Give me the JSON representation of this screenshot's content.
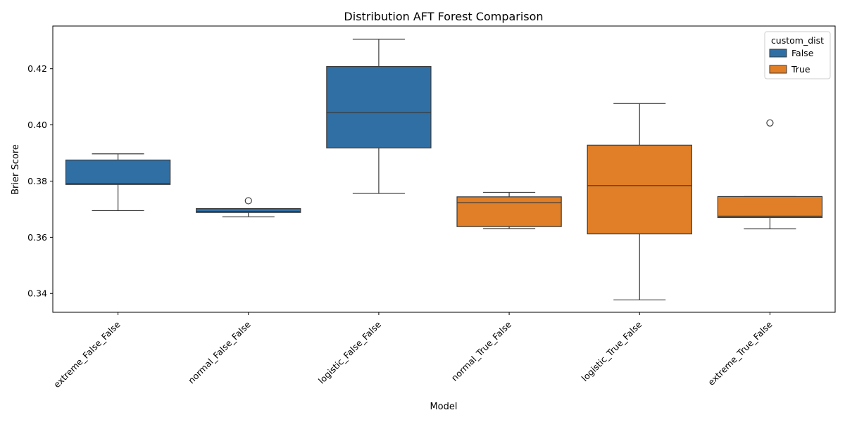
{
  "chart_data": {
    "type": "box",
    "title": "Distribution AFT Forest Comparison",
    "xlabel": "Model",
    "ylabel": "Brier Score",
    "ylim": [
      0.3333,
      0.4352
    ],
    "yticks": [
      0.34,
      0.36,
      0.38,
      0.4,
      0.42
    ],
    "ytick_labels": [
      "0.34",
      "0.36",
      "0.38",
      "0.40",
      "0.42"
    ],
    "grid": false,
    "legend": {
      "title": "custom_dist",
      "placement": "top-right",
      "entries": [
        {
          "label": "False",
          "color": "#2f6fa4"
        },
        {
          "label": "True",
          "color": "#e07f27"
        }
      ]
    },
    "categories": [
      "extreme_False_False",
      "normal_False_False",
      "logistic_False_False",
      "normal_True_False",
      "logistic_True_False",
      "extreme_True_False"
    ],
    "boxes": [
      {
        "category": "extreme_False_False",
        "custom_dist": "False",
        "whisker_low": 0.3695,
        "q1": 0.3788,
        "median": 0.3792,
        "q3": 0.3875,
        "whisker_high": 0.3897,
        "outliers": []
      },
      {
        "category": "normal_False_False",
        "custom_dist": "False",
        "whisker_low": 0.3673,
        "q1": 0.3688,
        "median": 0.3692,
        "q3": 0.3702,
        "whisker_high": 0.3702,
        "outliers": [
          0.373
        ]
      },
      {
        "category": "logistic_False_False",
        "custom_dist": "False",
        "whisker_low": 0.3756,
        "q1": 0.3918,
        "median": 0.4044,
        "q3": 0.4208,
        "whisker_high": 0.4305,
        "outliers": []
      },
      {
        "category": "normal_True_False",
        "custom_dist": "True",
        "whisker_low": 0.3631,
        "q1": 0.3638,
        "median": 0.3723,
        "q3": 0.3744,
        "whisker_high": 0.376,
        "outliers": []
      },
      {
        "category": "logistic_True_False",
        "custom_dist": "True",
        "whisker_low": 0.3377,
        "q1": 0.3612,
        "median": 0.3784,
        "q3": 0.3928,
        "whisker_high": 0.4076,
        "outliers": []
      },
      {
        "category": "extreme_True_False",
        "custom_dist": "True",
        "whisker_low": 0.363,
        "q1": 0.367,
        "median": 0.3675,
        "q3": 0.3745,
        "whisker_high": 0.3745,
        "outliers": [
          0.4007
        ]
      }
    ]
  },
  "colors": {
    "False": "#2f6fa4",
    "True": "#e07f27",
    "line": "#3a3a3a"
  }
}
